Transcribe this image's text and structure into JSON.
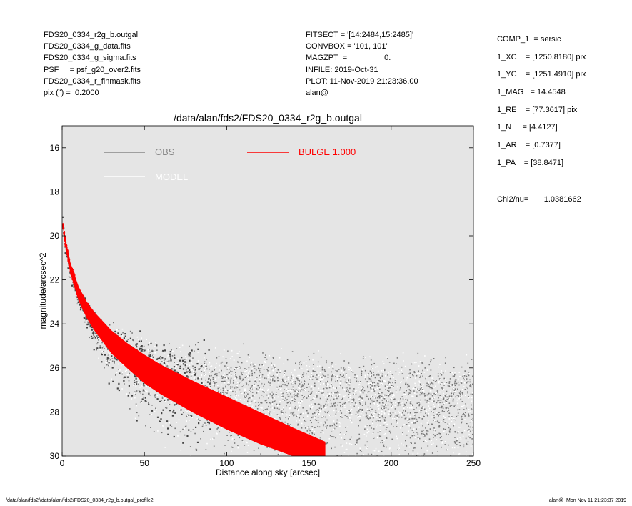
{
  "header": {
    "left": [
      "FDS20_0334_r2g_b.outgal",
      "FDS20_0334_g_data.fits",
      "FDS20_0334_g_sigma.fits",
      "PSF     = psf_g20_over2.fits",
      "FDS20_0334_r_finmask.fits",
      "pix (\") =  0.2000"
    ],
    "middle": [
      "FITSECT = '[14:2484,15:2485]'",
      "CONVBOX = '101, 101'",
      "MAGZPT  =                 0.",
      "INFILE: 2019-Oct-31",
      "PLOT: 11-Nov-2019 21:23:36.00",
      "alan@"
    ],
    "right": [
      "COMP_1  = sersic",
      "1_XC    = [1250.8180] pix",
      "1_YC    = [1251.4910] pix",
      "1_MAG   = 14.4548",
      "1_RE    = [77.3617] pix",
      "1_N     = [4.4127]",
      "1_AR    = [0.7377]",
      "1_PA    = [38.8471]"
    ],
    "chi2_label": "Chi2/nu=",
    "chi2_value": "1.0381662"
  },
  "footer": {
    "left": "/data/alan/fds2//data/alan/fds2/FDS20_0334_r2g_b.outgal_profile2",
    "right": "alan@  Mon Nov 11 21:23:37 2019"
  },
  "colors": {
    "plot_background": "#e5e5e5",
    "obs": "#777777",
    "obs_dark": "#444444",
    "model": "#ffffff",
    "bulge": "#ff0000"
  },
  "chart_data": {
    "type": "scatter",
    "title": "/data/alan/fds2/FDS20_0334_r2g_b.outgal",
    "xlabel": "Distance along sky [arcsec]",
    "ylabel": "magnitude/arcsec^2",
    "xlim": [
      0,
      250
    ],
    "ylim": [
      30,
      15
    ],
    "y_inverted": true,
    "xticks": [
      "0",
      "50",
      "100",
      "150",
      "200",
      "250"
    ],
    "yticks": [
      "16",
      "18",
      "20",
      "22",
      "24",
      "26",
      "28",
      "30"
    ],
    "legend": [
      {
        "name": "OBS",
        "color": "#888888"
      },
      {
        "name": "MODEL",
        "color": "#ffffff"
      },
      {
        "name": "BULGE  1.000",
        "color": "#ff0000"
      }
    ],
    "series": [
      {
        "name": "OBS",
        "x": [
          0.5,
          2,
          5,
          10,
          15,
          20,
          25,
          30,
          40,
          50,
          60,
          75,
          100,
          130,
          160,
          200,
          250
        ],
        "y": [
          19.2,
          20.3,
          21.5,
          22.6,
          23.4,
          23.9,
          24.3,
          24.7,
          25.2,
          25.6,
          25.9,
          26.2,
          26.5,
          26.7,
          26.8,
          26.9,
          27.0
        ],
        "spread": [
          0.2,
          0.25,
          0.3,
          0.35,
          0.45,
          0.6,
          0.75,
          0.9,
          1.1,
          1.3,
          1.4,
          1.5,
          1.6,
          1.6,
          1.7,
          1.7,
          1.7
        ]
      },
      {
        "name": "BULGE  1.000",
        "x": [
          0.5,
          2,
          5,
          10,
          15,
          20,
          30,
          40,
          50,
          60,
          80,
          100,
          120,
          140,
          160
        ],
        "y_upper": [
          19.4,
          20.1,
          21.2,
          22.3,
          23.0,
          23.5,
          24.3,
          24.9,
          25.4,
          25.85,
          26.6,
          27.3,
          28.0,
          28.7,
          29.35
        ],
        "y_lower": [
          19.6,
          20.5,
          21.7,
          22.95,
          23.75,
          24.35,
          25.35,
          26.05,
          26.7,
          27.2,
          28.05,
          28.8,
          29.45,
          30.0,
          30.0
        ]
      }
    ]
  }
}
